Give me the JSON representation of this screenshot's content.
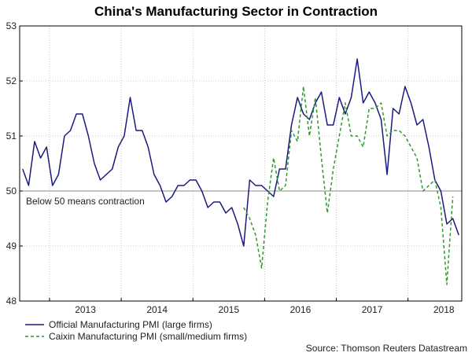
{
  "chart_data": {
    "type": "line",
    "title": "China's Manufacturing Sector in Contraction",
    "source": "Source: Thomson Reuters Datastream",
    "annotation": "Below 50 means contraction",
    "reference_line": 50,
    "ylim": [
      48,
      53
    ],
    "y_ticks": [
      48,
      49,
      50,
      51,
      52,
      53
    ],
    "x_start": "2012-08",
    "x_end": "2018-09",
    "x_ticks": [
      "2013",
      "2014",
      "2015",
      "2016",
      "2017",
      "2018"
    ],
    "grid": true,
    "legend_position": "bottom-left",
    "colors": {
      "official": "#1a1a80",
      "caixin": "#2e9a2e",
      "reference": "#888888"
    },
    "series": [
      {
        "name": "Official Manufacturing PMI (large firms)",
        "style": "solid",
        "start": "2012-08",
        "values": [
          50.4,
          50.1,
          50.9,
          50.6,
          50.8,
          50.1,
          50.3,
          51.0,
          51.1,
          51.4,
          51.4,
          51.0,
          50.5,
          50.2,
          50.3,
          50.4,
          50.8,
          51.0,
          51.7,
          51.1,
          51.1,
          50.8,
          50.3,
          50.1,
          49.8,
          49.9,
          50.1,
          50.1,
          50.2,
          50.2,
          50.0,
          49.7,
          49.8,
          49.8,
          49.6,
          49.7,
          49.4,
          49.0,
          50.2,
          50.1,
          50.1,
          50.0,
          49.9,
          50.4,
          50.4,
          51.2,
          51.7,
          51.4,
          51.3,
          51.6,
          51.8,
          51.2,
          51.2,
          51.7,
          51.4,
          51.7,
          52.4,
          51.6,
          51.8,
          51.6,
          51.3,
          50.3,
          51.5,
          51.4,
          51.9,
          51.6,
          51.2,
          51.3,
          50.8,
          50.2,
          50.0,
          49.4,
          49.5,
          49.2
        ]
      },
      {
        "name": "Caixin Manufacturing PMI (small/medium firms)",
        "style": "dashed",
        "start": "2015-09",
        "values": [
          49.7,
          49.5,
          49.2,
          48.6,
          49.8,
          50.6,
          50.0,
          50.1,
          51.1,
          50.9,
          51.9,
          51.0,
          51.7,
          50.6,
          49.6,
          50.4,
          51.0,
          51.6,
          51.0,
          51.0,
          50.8,
          51.5,
          51.5,
          51.6,
          51.0,
          51.1,
          51.1,
          51.0,
          50.8,
          50.6,
          50.0,
          50.1,
          50.2,
          49.7,
          48.3,
          49.9
        ]
      }
    ]
  }
}
